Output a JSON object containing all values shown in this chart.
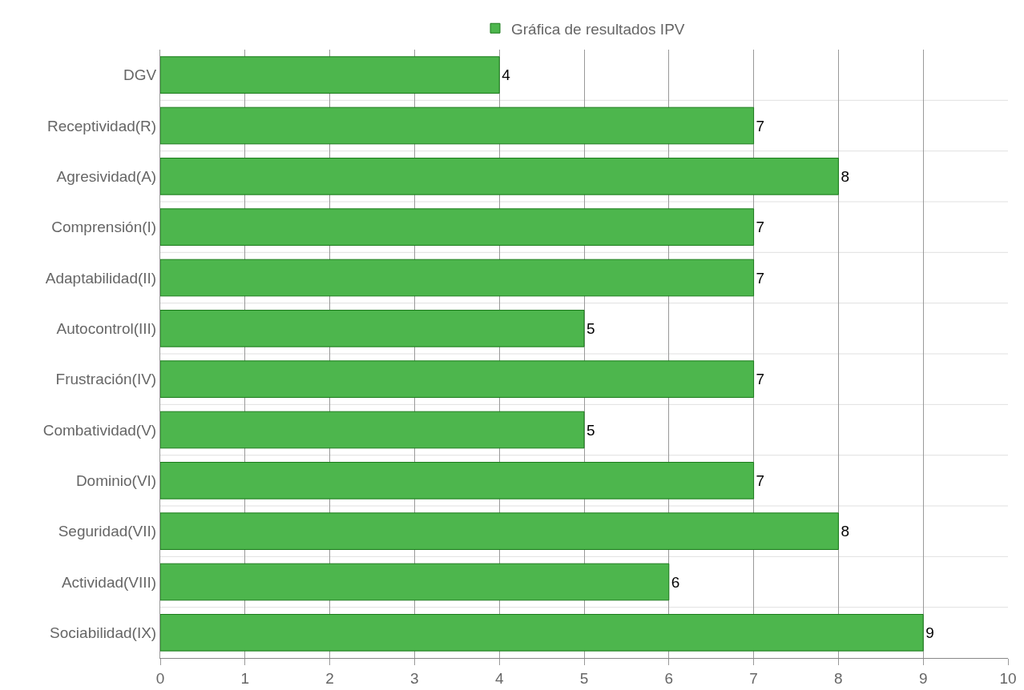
{
  "chart_data": {
    "type": "bar",
    "orientation": "horizontal",
    "categories": [
      "DGV",
      "Receptividad(R)",
      "Agresividad(A)",
      "Comprensión(I)",
      "Adaptabilidad(II)",
      "Autocontrol(III)",
      "Frustración(IV)",
      "Combatividad(V)",
      "Dominio(VI)",
      "Seguridad(VII)",
      "Actividad(VIII)",
      "Sociabilidad(IX)"
    ],
    "series": [
      {
        "name": "Gráfica de resultados IPV",
        "color": "#4db64d",
        "values": [
          4,
          7,
          8,
          7,
          7,
          5,
          7,
          5,
          7,
          8,
          6,
          9
        ]
      }
    ],
    "xlim": [
      0,
      10
    ],
    "xticks": [
      0,
      1,
      2,
      3,
      4,
      5,
      6,
      7,
      8,
      9,
      10
    ],
    "grid": true,
    "legend": "top",
    "data_labels": true
  }
}
